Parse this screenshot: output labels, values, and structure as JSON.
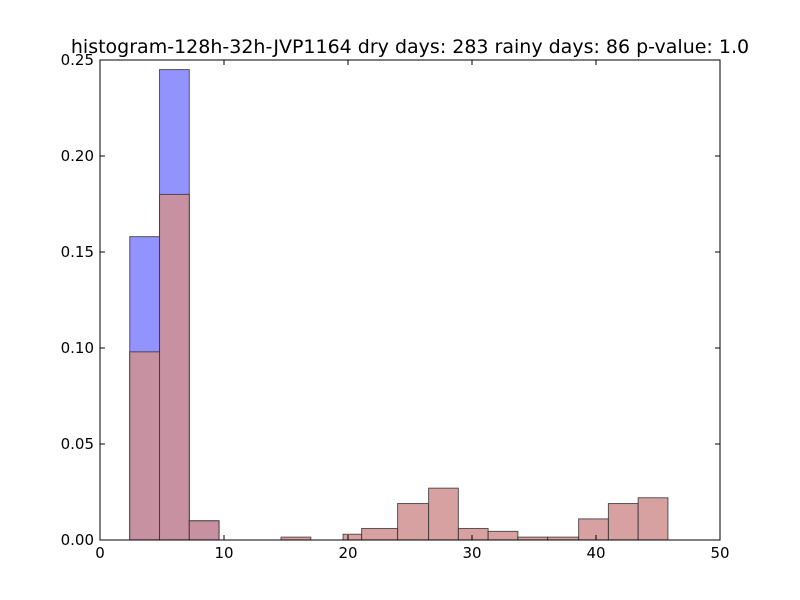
{
  "chart_data": {
    "type": "bar",
    "title": "histogram-128h-32h-JVP1164 dry days: 283 rainy days: 86 p-value: 1.0",
    "xlabel": "",
    "ylabel": "",
    "xlim": [
      0,
      50
    ],
    "ylim": [
      0,
      0.25
    ],
    "x_ticks": [
      "0",
      "10",
      "20",
      "30",
      "40",
      "50"
    ],
    "y_ticks": [
      "0.00",
      "0.05",
      "0.10",
      "0.15",
      "0.20",
      "0.25"
    ],
    "grid": false,
    "legend": "none",
    "series": [
      {
        "color": "#8080ff",
        "bins": [
          {
            "x0": 2.4,
            "x1": 4.8,
            "value": 0.158
          },
          {
            "x0": 4.8,
            "x1": 7.2,
            "value": 0.245
          },
          {
            "x0": 7.2,
            "x1": 9.6,
            "value": 0.01
          }
        ]
      },
      {
        "color": "#d09090",
        "bins": [
          {
            "x0": 2.4,
            "x1": 4.8,
            "value": 0.098
          },
          {
            "x0": 4.8,
            "x1": 7.2,
            "value": 0.18
          },
          {
            "x0": 7.2,
            "x1": 9.6,
            "value": 0.01
          },
          {
            "x0": 14.6,
            "x1": 17.0,
            "value": 0.0015
          },
          {
            "x0": 19.6,
            "x1": 21.1,
            "value": 0.003
          },
          {
            "x0": 21.1,
            "x1": 24.0,
            "value": 0.006
          },
          {
            "x0": 24.0,
            "x1": 26.5,
            "value": 0.019
          },
          {
            "x0": 26.5,
            "x1": 28.9,
            "value": 0.027
          },
          {
            "x0": 28.9,
            "x1": 31.3,
            "value": 0.006
          },
          {
            "x0": 31.3,
            "x1": 33.7,
            "value": 0.0045
          },
          {
            "x0": 33.7,
            "x1": 36.1,
            "value": 0.0015
          },
          {
            "x0": 36.1,
            "x1": 38.6,
            "value": 0.0015
          },
          {
            "x0": 38.6,
            "x1": 41.0,
            "value": 0.011
          },
          {
            "x0": 41.0,
            "x1": 43.4,
            "value": 0.019
          },
          {
            "x0": 43.4,
            "x1": 45.8,
            "value": 0.022
          }
        ]
      }
    ]
  }
}
